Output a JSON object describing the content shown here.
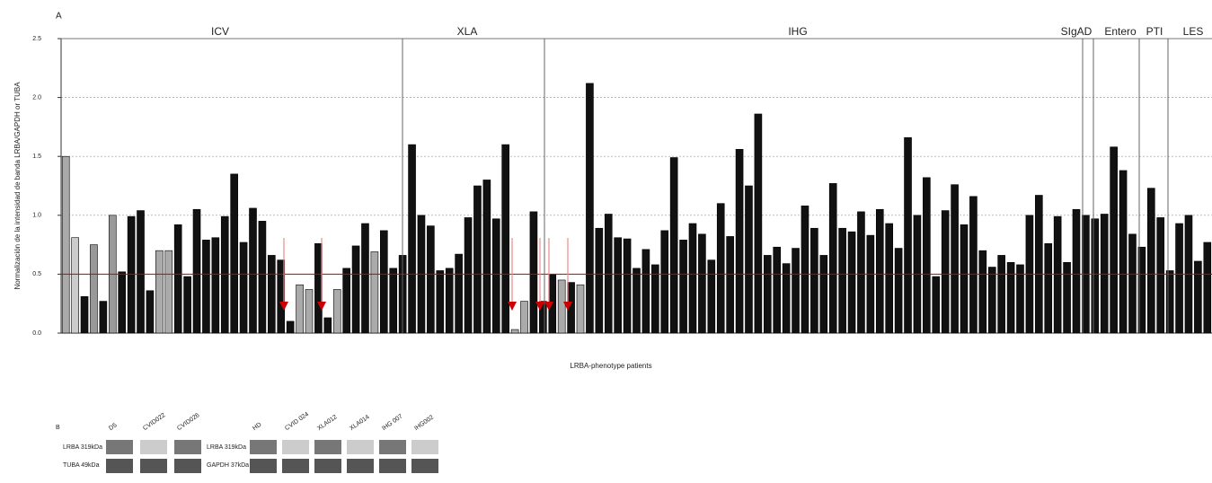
{
  "chart_data": {
    "type": "bar",
    "panel": "A",
    "y_label": "Normalización de la intensidad de banda LRBA/GAPDH or TUBA",
    "x_label": "LRBA-phenotype patients",
    "groups": [
      "ICV",
      "XLA",
      "IHG",
      "SIgAD",
      "Entero",
      "PTI",
      "LES"
    ],
    "values": [
      1.5,
      0.81,
      0.31,
      0.75,
      0.27,
      1.0,
      0.52,
      0.99,
      1.04,
      0.36,
      0.7,
      0.7,
      0.92,
      0.48,
      1.05,
      0.79,
      0.81,
      0.99,
      1.35,
      0.77,
      1.06,
      0.95,
      0.66,
      0.62,
      0.1,
      0.41,
      0.37,
      0.76,
      0.13,
      0.37,
      0.55,
      0.74,
      0.93,
      0.69,
      0.87,
      0.55,
      0.66,
      1.6,
      1.0,
      0.91,
      0.53,
      0.55,
      0.67,
      0.98,
      1.25,
      1.3,
      0.97,
      1.6,
      0.03,
      0.27,
      1.03,
      0.27,
      0.5,
      0.45,
      0.43,
      0.41,
      2.12,
      0.89,
      1.01,
      0.81,
      0.8,
      0.55,
      0.71,
      0.58,
      0.87,
      1.49,
      0.79,
      0.93,
      0.84,
      0.62,
      1.1,
      0.82,
      1.56,
      1.25,
      1.86,
      0.66,
      0.73,
      0.59,
      0.72,
      1.08,
      0.89,
      0.66,
      1.27,
      0.89,
      0.86,
      1.03,
      0.83,
      1.05,
      0.93,
      0.72,
      1.66,
      1.0,
      1.32,
      0.48,
      1.04,
      1.26,
      0.92,
      1.16,
      0.7,
      0.56,
      0.66,
      0.6,
      0.58,
      1.0,
      1.17,
      0.76,
      0.99,
      0.6,
      1.05,
      1.0,
      0.97,
      1.01,
      1.58,
      1.38,
      0.84,
      0.73,
      1.23,
      0.98,
      0.53,
      0.93,
      1.0,
      0.61,
      0.77
    ],
    "colors": [
      "#aaa",
      "#ccc",
      "#111",
      "#999",
      "#111",
      "#999",
      "#111",
      "#111",
      "#111",
      "#111",
      "#aaa",
      "#aaa",
      "#111",
      "#111",
      "#111",
      "#111",
      "#111",
      "#111",
      "#111",
      "#111",
      "#111",
      "#111",
      "#111",
      "#111",
      "#111",
      "#aaa",
      "#aaa",
      "#111",
      "#111",
      "#aaa",
      "#111",
      "#111",
      "#111",
      "#aaa",
      "#111",
      "#111",
      "#111",
      "#111",
      "#111",
      "#111",
      "#111",
      "#111",
      "#111",
      "#111",
      "#111",
      "#111",
      "#111",
      "#111",
      "#aaa",
      "#aaa",
      "#111",
      "#111",
      "#111",
      "#aaa",
      "#111",
      "#aaa",
      "#111",
      "#111",
      "#111",
      "#111",
      "#111",
      "#111",
      "#111",
      "#111",
      "#111",
      "#111",
      "#111",
      "#111",
      "#111",
      "#111",
      "#111",
      "#111",
      "#111",
      "#111",
      "#111",
      "#111",
      "#111",
      "#111",
      "#111",
      "#111",
      "#111",
      "#111",
      "#111",
      "#111",
      "#111",
      "#111",
      "#111",
      "#111",
      "#111",
      "#111",
      "#111",
      "#111",
      "#111",
      "#111",
      "#111",
      "#111",
      "#111",
      "#111",
      "#111",
      "#111",
      "#111",
      "#111",
      "#111",
      "#111",
      "#111",
      "#111",
      "#111",
      "#111",
      "#111",
      "#111",
      "#111",
      "#111",
      "#111",
      "#111",
      "#111",
      "#111",
      "#111",
      "#111",
      "#111",
      "#111",
      "#111",
      "#111",
      "#111"
    ],
    "threshold": 0.5,
    "threshold_color": "#c00",
    "ylim": [
      0,
      2.5
    ],
    "yticks": [
      {
        "value": 0,
        "label": "0.0"
      },
      {
        "value": 0.5,
        "label": "0.5"
      },
      {
        "value": 1,
        "label": "1.0"
      },
      {
        "value": 1.5,
        "label": "1.5"
      },
      {
        "value": 2,
        "label": "2.0"
      },
      {
        "value": 2.5,
        "label": "2.5"
      }
    ],
    "grid": true
  },
  "blot": {
    "panel": "B",
    "left": {
      "lanes": [
        "D5",
        "CVID022",
        "CVID026"
      ],
      "rows": [
        "LRBA 319kDa",
        "TUBA 49kDa"
      ]
    },
    "right": {
      "lanes": [
        "HD",
        "CVID 024",
        "XLA012",
        "XLA014",
        "IHG 007",
        "IHG002"
      ],
      "rows": [
        "LRBA 319kDa",
        "GAPDH 37kDa"
      ]
    }
  }
}
